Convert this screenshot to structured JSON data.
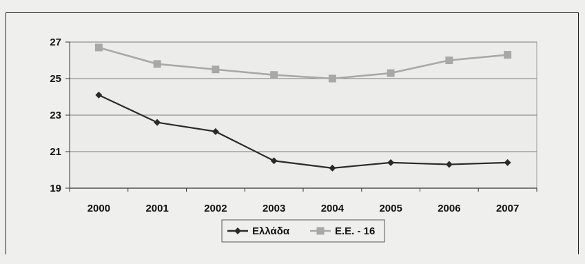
{
  "chart_data": {
    "type": "line",
    "title": "",
    "xlabel": "",
    "ylabel": "",
    "categories": [
      "2000",
      "2001",
      "2002",
      "2003",
      "2004",
      "2005",
      "2006",
      "2007"
    ],
    "ylim": [
      19,
      27
    ],
    "yticks": [
      19,
      21,
      23,
      25,
      27
    ],
    "grid": true,
    "legend_position": "bottom",
    "series": [
      {
        "name": "Ελλάδα",
        "marker": "diamond",
        "color": "#2a2a2a",
        "values": [
          24.1,
          22.6,
          22.1,
          20.5,
          20.1,
          20.4,
          20.3,
          20.4
        ]
      },
      {
        "name": "Ε.Ε. - 16",
        "marker": "square",
        "color": "#a8a8a8",
        "values": [
          26.7,
          25.8,
          25.5,
          25.2,
          25.0,
          25.3,
          26.0,
          26.3
        ]
      }
    ]
  }
}
